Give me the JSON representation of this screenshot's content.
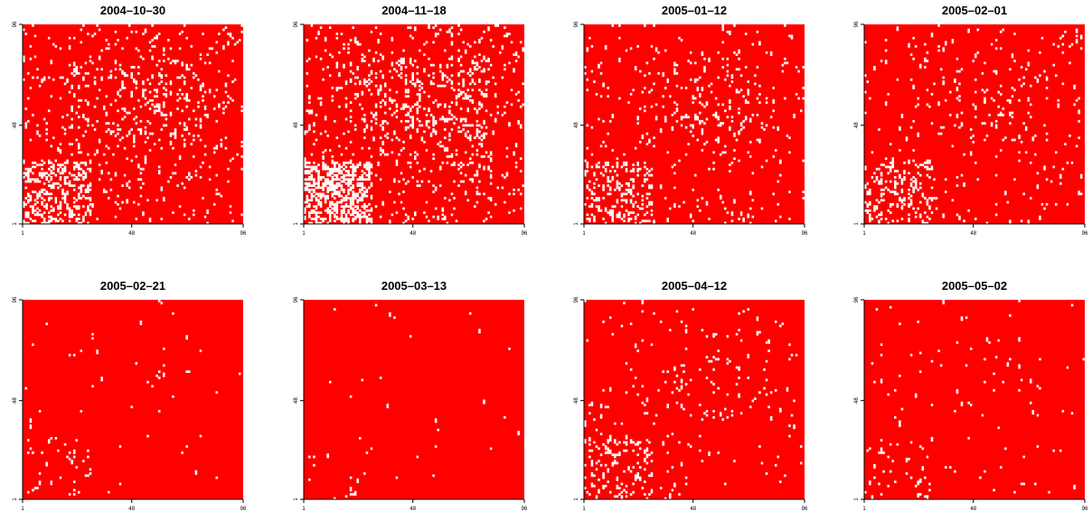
{
  "chart_data": [
    {
      "type": "heatmap",
      "title": "2004–10–30",
      "x_ticks": [
        "1",
        "48",
        "96"
      ],
      "y_ticks": [
        "1",
        "48",
        "96"
      ],
      "grid_size": 96,
      "colors": {
        "background": "#ff0000",
        "cells": "#ffffff"
      },
      "density": 0.07,
      "seed": 11
    },
    {
      "type": "heatmap",
      "title": "2004–11–18",
      "x_ticks": [
        "1",
        "48",
        "96"
      ],
      "y_ticks": [
        "1",
        "48",
        "96"
      ],
      "grid_size": 96,
      "colors": {
        "background": "#ff0000",
        "cells": "#ffffff"
      },
      "density": 0.1,
      "seed": 23
    },
    {
      "type": "heatmap",
      "title": "2005–01–12",
      "x_ticks": [
        "1",
        "48",
        "96"
      ],
      "y_ticks": [
        "1",
        "48",
        "96"
      ],
      "grid_size": 96,
      "colors": {
        "background": "#ff0000",
        "cells": "#ffffff"
      },
      "density": 0.04,
      "seed": 37
    },
    {
      "type": "heatmap",
      "title": "2005–02–01",
      "x_ticks": [
        "1",
        "48",
        "96"
      ],
      "y_ticks": [
        "1",
        "48",
        "96"
      ],
      "grid_size": 96,
      "colors": {
        "background": "#ff0000",
        "cells": "#ffffff"
      },
      "density": 0.035,
      "seed": 41
    },
    {
      "type": "heatmap",
      "title": "2005–02–21",
      "x_ticks": [
        "1",
        "48",
        "96"
      ],
      "y_ticks": [
        "1",
        "48",
        "96"
      ],
      "grid_size": 96,
      "colors": {
        "background": "#ff0000",
        "cells": "#ffffff"
      },
      "density": 0.006,
      "seed": 53
    },
    {
      "type": "heatmap",
      "title": "2005–03–13",
      "x_ticks": [
        "1",
        "48",
        "96"
      ],
      "y_ticks": [
        "1",
        "48",
        "96"
      ],
      "grid_size": 96,
      "colors": {
        "background": "#ff0000",
        "cells": "#ffffff"
      },
      "density": 0.003,
      "seed": 67
    },
    {
      "type": "heatmap",
      "title": "2005–04–12",
      "x_ticks": [
        "1",
        "48",
        "96"
      ],
      "y_ticks": [
        "1",
        "48",
        "96"
      ],
      "grid_size": 96,
      "colors": {
        "background": "#ff0000",
        "cells": "#ffffff"
      },
      "density": 0.025,
      "seed": 79
    },
    {
      "type": "heatmap",
      "title": "2005–05–02",
      "x_ticks": [
        "1",
        "48",
        "96"
      ],
      "y_ticks": [
        "1",
        "48",
        "96"
      ],
      "grid_size": 96,
      "colors": {
        "background": "#ff0000",
        "cells": "#ffffff"
      },
      "density": 0.01,
      "seed": 97
    }
  ]
}
